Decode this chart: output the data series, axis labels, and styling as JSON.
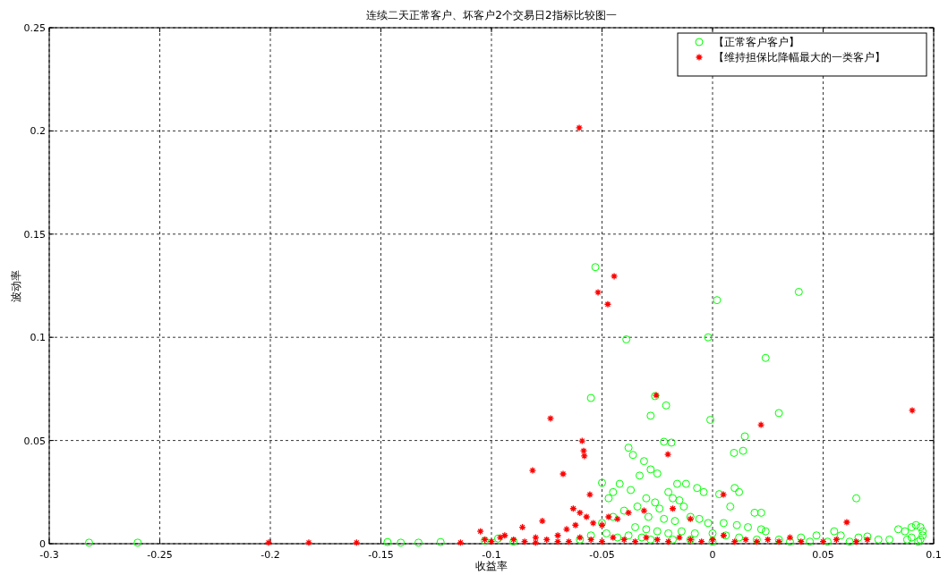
{
  "chart_data": {
    "type": "scatter",
    "title": "连续二天正常客户、坏客户2个交易日2指标比较图一",
    "xlabel": "收益率",
    "ylabel": "波动率",
    "xlim": [
      -0.3,
      0.1
    ],
    "xticks": [
      -0.3,
      -0.25,
      -0.2,
      -0.15,
      -0.1,
      -0.05,
      0,
      0.05,
      0.1
    ],
    "ylim": [
      0,
      0.25
    ],
    "yticks": [
      0,
      0.05,
      0.1,
      0.15,
      0.2,
      0.25
    ],
    "grid": true,
    "line_style": "dashed",
    "legend": "top right",
    "series": [
      {
        "name": "【正常客户客户】",
        "color": "#00ff00",
        "marker": "circle",
        "x": [
          -0.282,
          -0.26,
          -0.147,
          -0.141,
          -0.133,
          -0.123,
          -0.103,
          -0.097,
          -0.09,
          -0.053,
          0.002,
          0.039,
          -0.039,
          -0.002,
          0.024,
          -0.055,
          -0.026,
          -0.021,
          -0.028,
          -0.001,
          0.03,
          0.0146,
          0.0138,
          0.0097,
          -0.022,
          -0.0186,
          0.065,
          -0.05,
          -0.038,
          -0.036,
          -0.031,
          -0.028,
          -0.025,
          -0.033,
          -0.042,
          -0.037,
          -0.045,
          -0.047,
          -0.016,
          -0.012,
          -0.007,
          -0.004,
          0.003,
          0.01,
          0.012,
          0.008,
          0.019,
          0.022,
          -0.02,
          -0.018,
          -0.015,
          -0.013,
          -0.03,
          -0.026,
          -0.024,
          -0.034,
          -0.04,
          -0.045,
          -0.05,
          -0.029,
          -0.022,
          -0.017,
          -0.01,
          -0.006,
          -0.002,
          0.005,
          0.011,
          0.016,
          0.022,
          0.024,
          -0.035,
          -0.03,
          -0.025,
          -0.02,
          -0.014,
          -0.008,
          0.0,
          0.006,
          0.012,
          0.02,
          0.03,
          0.04,
          0.047,
          0.055,
          0.058,
          0.066,
          0.07,
          0.075,
          0.08,
          0.084,
          0.087,
          0.09,
          0.092,
          0.094,
          0.095,
          0.095,
          0.094,
          0.093,
          0.09,
          0.088,
          0.052,
          0.062,
          -0.06,
          -0.055,
          -0.048,
          -0.043,
          -0.038,
          -0.032,
          -0.028,
          -0.018,
          -0.01,
          0.0,
          0.035,
          0.044
        ],
        "values": [
          0.0005,
          0.0005,
          0.0008,
          0.0005,
          0.0005,
          0.0008,
          0.0015,
          0.0025,
          0.001,
          0.134,
          0.118,
          0.122,
          0.099,
          0.1,
          0.09,
          0.0706,
          0.0715,
          0.067,
          0.062,
          0.06,
          0.0633,
          0.052,
          0.045,
          0.044,
          0.0494,
          0.049,
          0.022,
          0.0295,
          0.0465,
          0.043,
          0.04,
          0.036,
          0.034,
          0.033,
          0.029,
          0.026,
          0.025,
          0.022,
          0.029,
          0.029,
          0.027,
          0.025,
          0.024,
          0.027,
          0.025,
          0.018,
          0.015,
          0.015,
          0.025,
          0.022,
          0.021,
          0.018,
          0.022,
          0.02,
          0.017,
          0.018,
          0.016,
          0.013,
          0.01,
          0.013,
          0.012,
          0.011,
          0.013,
          0.012,
          0.01,
          0.01,
          0.009,
          0.008,
          0.007,
          0.006,
          0.008,
          0.007,
          0.006,
          0.005,
          0.006,
          0.005,
          0.005,
          0.004,
          0.003,
          0.002,
          0.002,
          0.003,
          0.004,
          0.006,
          0.004,
          0.003,
          0.0035,
          0.002,
          0.002,
          0.007,
          0.006,
          0.008,
          0.009,
          0.008,
          0.006,
          0.004,
          0.002,
          0.001,
          0.003,
          0.002,
          0.001,
          0.001,
          0.002,
          0.004,
          0.005,
          0.003,
          0.004,
          0.003,
          0.002,
          0.002,
          0.002,
          0.001,
          0.001,
          0.001
        ]
      },
      {
        "name": "【维持担保比降幅最大的一类客户】",
        "color": "#ff0000",
        "marker": "cross",
        "x": [
          -0.0603,
          -0.0445,
          -0.0518,
          -0.0474,
          -0.0255,
          -0.0733,
          -0.059,
          -0.0583,
          -0.058,
          -0.0814,
          -0.0676,
          -0.0202,
          0.0219,
          0.0903,
          -0.0555,
          -0.2008,
          -0.1826,
          -0.161,
          -0.114,
          0.0049,
          0.0607,
          -0.063,
          -0.06,
          -0.057,
          -0.077,
          -0.086,
          -0.094,
          -0.105,
          -0.103,
          -0.1,
          -0.096,
          -0.09,
          -0.085,
          -0.08,
          -0.075,
          -0.07,
          -0.066,
          -0.062,
          -0.054,
          -0.05,
          -0.047,
          -0.043,
          -0.038,
          -0.031,
          -0.018,
          -0.01,
          0.005,
          0.035,
          -0.06,
          -0.055,
          -0.05,
          -0.045,
          -0.04,
          -0.035,
          -0.03,
          -0.025,
          -0.02,
          -0.015,
          -0.01,
          -0.005,
          0.0,
          0.01,
          0.015,
          0.02,
          0.025,
          0.03,
          0.04,
          0.05,
          0.056,
          0.065,
          0.07,
          -0.065,
          -0.07,
          -0.08
        ],
        "values": [
          0.2015,
          0.1296,
          0.1218,
          0.116,
          0.0719,
          0.0607,
          0.0498,
          0.045,
          0.0425,
          0.0355,
          0.0338,
          0.0433,
          0.0576,
          0.0646,
          0.0238,
          0.0005,
          0.0005,
          0.0005,
          0.0005,
          0.0238,
          0.0104,
          0.017,
          0.015,
          0.013,
          0.011,
          0.008,
          0.004,
          0.006,
          0.002,
          0.001,
          0.003,
          0.002,
          0.001,
          0.003,
          0.002,
          0.004,
          0.007,
          0.009,
          0.01,
          0.009,
          0.013,
          0.012,
          0.015,
          0.016,
          0.017,
          0.012,
          0.004,
          0.003,
          0.003,
          0.002,
          0.001,
          0.003,
          0.002,
          0.001,
          0.003,
          0.002,
          0.001,
          0.003,
          0.002,
          0.001,
          0.002,
          0.001,
          0.002,
          0.001,
          0.002,
          0.001,
          0.001,
          0.001,
          0.002,
          0.001,
          0.002,
          0.001,
          0.001,
          0.0005
        ]
      }
    ]
  }
}
